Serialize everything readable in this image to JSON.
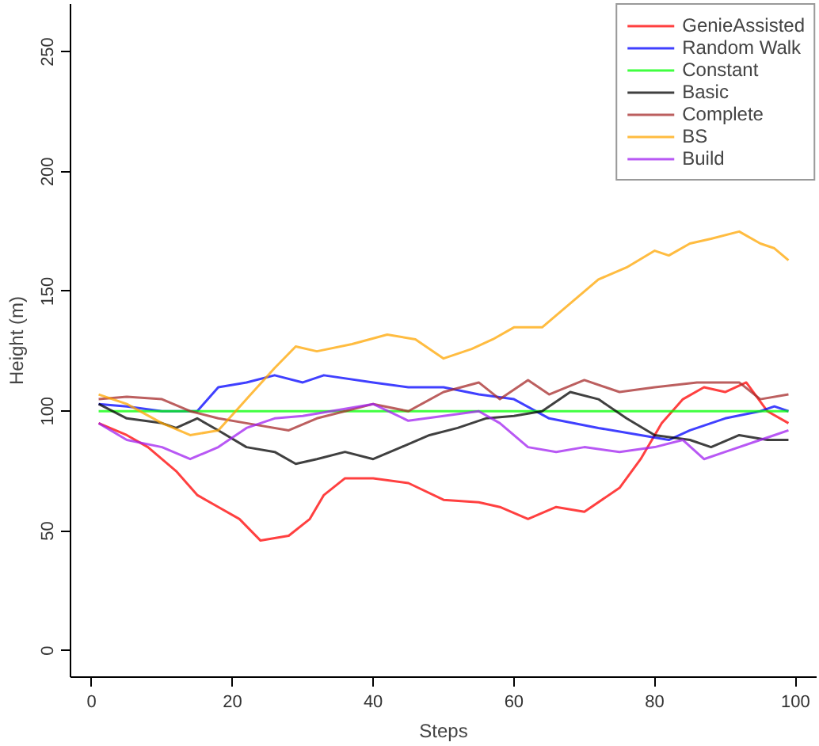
{
  "chart_data": {
    "type": "line",
    "xlabel": "Steps",
    "ylabel": "Height (m)",
    "xlim": [
      -3,
      103
    ],
    "ylim": [
      -11,
      270
    ],
    "xticks": [
      0,
      20,
      40,
      60,
      80,
      100
    ],
    "yticks": [
      0,
      50,
      100,
      150,
      200,
      250
    ],
    "grid": false,
    "legend": "top right",
    "line_style": "solid",
    "marker": "none",
    "series": [
      {
        "name": "GenieAssisted",
        "color": "#ff0000",
        "x": [
          1,
          5,
          8,
          12,
          15,
          18,
          21,
          24,
          28,
          31,
          33,
          36,
          40,
          45,
          50,
          55,
          58,
          62,
          66,
          70,
          75,
          78,
          81,
          84,
          87,
          90,
          93,
          96,
          99
        ],
        "values": [
          95,
          90,
          85,
          75,
          65,
          60,
          55,
          46,
          48,
          55,
          65,
          72,
          72,
          70,
          63,
          62,
          60,
          55,
          60,
          58,
          68,
          80,
          95,
          105,
          110,
          108,
          112,
          100,
          95
        ]
      },
      {
        "name": "Random Walk",
        "color": "#0000ff",
        "x": [
          1,
          5,
          10,
          15,
          18,
          22,
          26,
          30,
          33,
          40,
          45,
          50,
          55,
          60,
          65,
          72,
          78,
          82,
          85,
          90,
          95,
          97,
          99
        ],
        "values": [
          103,
          102,
          100,
          100,
          110,
          112,
          115,
          112,
          115,
          112,
          110,
          110,
          107,
          105,
          97,
          93,
          90,
          88,
          92,
          97,
          100,
          102,
          100
        ]
      },
      {
        "name": "Constant",
        "color": "#00ff00",
        "x": [
          1,
          99
        ],
        "values": [
          100,
          100
        ]
      },
      {
        "name": "Basic",
        "color": "#000000",
        "x": [
          1,
          5,
          10,
          12,
          15,
          18,
          22,
          26,
          29,
          32,
          36,
          40,
          44,
          48,
          52,
          56,
          60,
          64,
          68,
          72,
          76,
          80,
          85,
          88,
          92,
          96,
          99
        ],
        "values": [
          103,
          97,
          95,
          93,
          97,
          92,
          85,
          83,
          78,
          80,
          83,
          80,
          85,
          90,
          93,
          97,
          98,
          100,
          108,
          105,
          97,
          90,
          88,
          85,
          90,
          88,
          88
        ]
      },
      {
        "name": "Complete",
        "color": "#a52a2a",
        "x": [
          1,
          5,
          10,
          14,
          18,
          22,
          28,
          32,
          36,
          40,
          45,
          50,
          55,
          58,
          62,
          65,
          70,
          75,
          80,
          86,
          92,
          95,
          99
        ],
        "values": [
          105,
          106,
          105,
          100,
          97,
          95,
          92,
          97,
          100,
          103,
          100,
          108,
          112,
          105,
          113,
          107,
          113,
          108,
          110,
          112,
          112,
          105,
          107
        ]
      },
      {
        "name": "BS",
        "color": "#ffa500",
        "x": [
          1,
          5,
          10,
          14,
          18,
          22,
          26,
          29,
          32,
          37,
          42,
          46,
          50,
          54,
          57,
          60,
          64,
          68,
          72,
          76,
          80,
          82,
          85,
          88,
          92,
          95,
          97,
          99
        ],
        "values": [
          107,
          103,
          95,
          90,
          92,
          105,
          118,
          127,
          125,
          128,
          132,
          130,
          122,
          126,
          130,
          135,
          135,
          145,
          155,
          160,
          167,
          165,
          170,
          172,
          175,
          170,
          168,
          163
        ]
      },
      {
        "name": "Build",
        "color": "#a020f0",
        "x": [
          1,
          5,
          10,
          14,
          18,
          22,
          26,
          30,
          34,
          40,
          45,
          50,
          55,
          58,
          62,
          66,
          70,
          75,
          80,
          84,
          87,
          90,
          95,
          97,
          99
        ],
        "values": [
          95,
          88,
          85,
          80,
          85,
          93,
          97,
          98,
          100,
          103,
          96,
          98,
          100,
          95,
          85,
          83,
          85,
          83,
          85,
          88,
          80,
          83,
          88,
          90,
          92
        ]
      }
    ]
  }
}
